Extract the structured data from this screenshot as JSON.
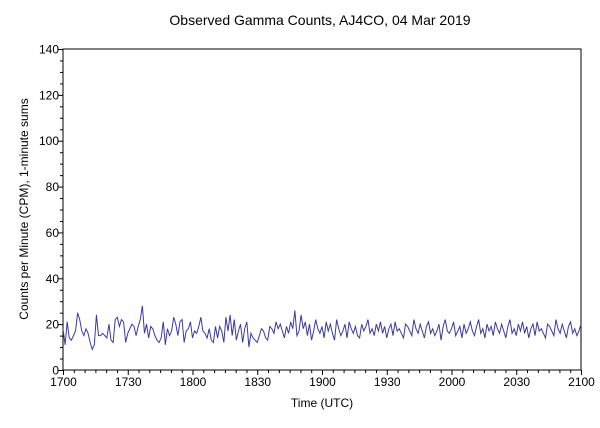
{
  "chart_data": {
    "type": "line",
    "title": "Observed Gamma Counts, AJ4CO, 04 Mar 2019",
    "xlabel": "Time (UTC)",
    "ylabel": "Counts per Minute (CPM), 1-minute sums",
    "x_tick_labels": [
      "1700",
      "1730",
      "1800",
      "1830",
      "1900",
      "1930",
      "2000",
      "2030",
      "2100"
    ],
    "xlim_minutes": [
      0,
      240
    ],
    "x_start_label": "1700",
    "y_ticks": [
      0,
      20,
      40,
      60,
      80,
      100,
      120,
      140
    ],
    "ylim": [
      0,
      140
    ],
    "grid": true,
    "line_color": "#3b3b9a",
    "grid_color": "#000000",
    "series": [
      {
        "values": [
          18,
          11,
          21,
          14,
          13,
          15,
          17,
          25,
          22,
          17,
          15,
          18,
          16,
          12,
          9,
          11,
          24,
          15,
          15,
          16,
          15,
          14,
          20,
          13,
          12,
          22,
          23,
          19,
          22,
          21,
          12,
          16,
          18,
          20,
          19,
          15,
          19,
          22,
          28,
          16,
          20,
          14,
          19,
          18,
          15,
          13,
          12,
          14,
          21,
          11,
          18,
          15,
          17,
          23,
          20,
          15,
          21,
          22,
          12,
          17,
          18,
          21,
          14,
          17,
          16,
          19,
          23,
          17,
          16,
          14,
          18,
          13,
          12,
          19,
          14,
          19,
          17,
          12,
          23,
          17,
          24,
          15,
          22,
          13,
          17,
          20,
          12,
          18,
          21,
          10,
          16,
          14,
          13,
          12,
          15,
          18,
          17,
          14,
          13,
          19,
          18,
          16,
          21,
          18,
          20,
          17,
          14,
          19,
          16,
          21,
          18,
          26,
          15,
          17,
          24,
          18,
          21,
          15,
          20,
          13,
          17,
          22,
          18,
          16,
          19,
          14,
          21,
          17,
          20,
          16,
          13,
          22,
          18,
          15,
          17,
          20,
          14,
          21,
          18,
          16,
          19,
          15,
          14,
          20,
          17,
          19,
          22,
          16,
          18,
          15,
          20,
          17,
          21,
          16,
          19,
          14,
          18,
          20,
          15,
          21,
          17,
          18,
          16,
          14,
          20,
          19,
          17,
          15,
          22,
          18,
          16,
          20,
          17,
          14,
          19,
          21,
          16,
          18,
          15,
          17,
          20,
          13,
          19,
          22,
          17,
          16,
          18,
          21,
          15,
          17,
          19,
          14,
          20,
          16,
          18,
          21,
          17,
          15,
          19,
          22,
          16,
          18,
          14,
          20,
          17,
          19,
          15,
          21,
          18,
          16,
          20,
          17,
          14,
          19,
          22,
          16,
          18,
          15,
          20,
          17,
          21,
          16,
          19,
          14,
          18,
          20,
          15,
          21,
          17,
          18,
          16,
          14,
          20,
          19,
          17,
          15,
          22,
          18,
          16,
          20,
          17,
          14,
          19,
          21,
          16,
          18,
          15,
          17,
          20
        ]
      }
    ]
  }
}
